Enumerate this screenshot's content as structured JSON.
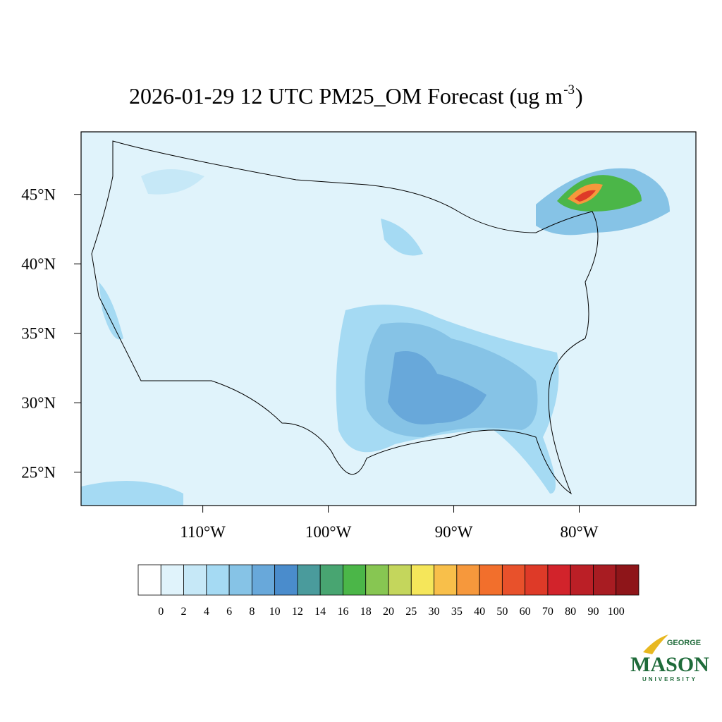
{
  "map": {
    "title": "2026-01-29 12 UTC PM25_OM Forecast (ug m",
    "title_superscript": "-3",
    "title_end": ")",
    "latlim": [
      22.6,
      49.5
    ],
    "lonlim": [
      -119.7,
      -70.7
    ],
    "latticks": [
      {
        "value": 25,
        "label": "25°N"
      },
      {
        "value": 30,
        "label": "30°N"
      },
      {
        "value": 35,
        "label": "35°N"
      },
      {
        "value": 40,
        "label": "40°N"
      },
      {
        "value": 45,
        "label": "45°N"
      }
    ],
    "lonticks": [
      {
        "value": -110,
        "label": "110°W"
      },
      {
        "value": -100,
        "label": "100°W"
      },
      {
        "value": -90,
        "label": "90°W"
      },
      {
        "value": -80,
        "label": "80°W"
      }
    ]
  },
  "colorbar": {
    "levels": [
      0,
      2,
      4,
      6,
      8,
      10,
      12,
      14,
      16,
      18,
      20,
      25,
      30,
      35,
      40,
      50,
      60,
      70,
      80,
      90,
      100
    ],
    "colors": [
      "#ffffff",
      "#e0f3fb",
      "#c6e8f7",
      "#a5daf3",
      "#86c3e6",
      "#68a8da",
      "#4a8ccc",
      "#4a9b9c",
      "#48a571",
      "#4bb648",
      "#87c652",
      "#c4d65c",
      "#f5e65a",
      "#f8bf4a",
      "#f6983c",
      "#f26f2c",
      "#e8512b",
      "#de3a28",
      "#d2232b",
      "#bb1f26",
      "#a81c22",
      "#8e1519"
    ]
  },
  "logo": {
    "top": "GEORGE",
    "main": "MASON",
    "bottom": "UNIVERSITY"
  }
}
